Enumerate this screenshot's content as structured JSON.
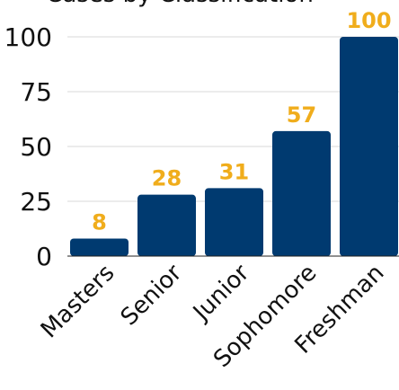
{
  "chart_data": {
    "type": "bar",
    "title": "Cases by Classification",
    "categories": [
      "Masters",
      "Senior",
      "Junior",
      "Sophomore",
      "Freshman"
    ],
    "values": [
      8,
      28,
      31,
      57,
      100
    ],
    "ylim": [
      0,
      100
    ],
    "yticks": [
      0,
      25,
      50,
      75,
      100
    ],
    "grid": true,
    "legend": "none",
    "colors": {
      "bar": "#003a70",
      "value_label": "#f0ad1c",
      "grid": "#d9d9d9",
      "axis": "#222222"
    }
  }
}
